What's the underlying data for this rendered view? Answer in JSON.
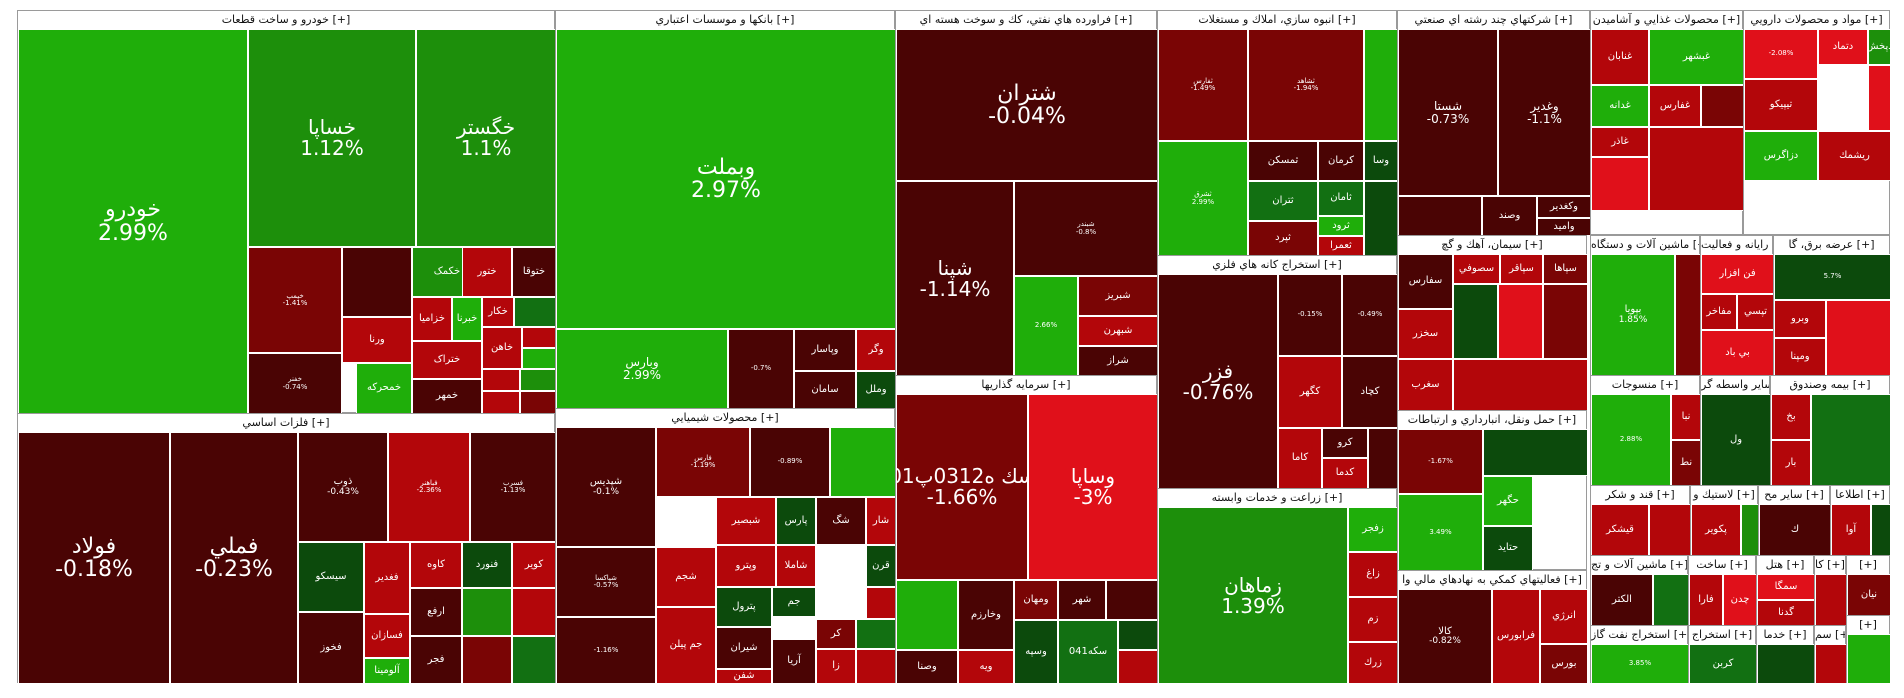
{
  "colors": {
    "strong_up": "#1fae0a",
    "up": "#1d8f0b",
    "mild_up": "#127012",
    "flat_up": "#0c4a0c",
    "flat_down": "#4a0404",
    "down": "#7a0505",
    "mid_down": "#b3060a",
    "strong_down": "#e0101a",
    "white": "#ffffff"
  },
  "sectors": [
    {
      "title": "خودرو و ساخت قطعات [+]",
      "tiles": [
        {
          "name": "خودرو",
          "pct": "2.99%",
          "pct_value": 2.99,
          "size": "xl"
        },
        {
          "name": "خساپا",
          "pct": "1.12%",
          "pct_value": 1.12,
          "size": "lg"
        },
        {
          "name": "خگستر",
          "pct": "1.1%",
          "pct_value": 1.1,
          "size": "lg"
        },
        {
          "name": "خپمپ",
          "pct": "-1.41%",
          "pct_value": -1.41,
          "size": "xs"
        },
        {
          "name": "",
          "pct": "",
          "size": "xs"
        },
        {
          "name": "خکمک",
          "pct": "",
          "size": "sm"
        },
        {
          "name": "ختور",
          "pct": "",
          "size": "sm"
        },
        {
          "name": "ختوقا",
          "pct": "",
          "size": "sm"
        },
        {
          "name": "ورنا",
          "pct": "",
          "size": "sm"
        },
        {
          "name": "خزامیا",
          "pct": "",
          "size": "sm"
        },
        {
          "name": "خبرنا",
          "pct": "",
          "size": "sm"
        },
        {
          "name": "خکار",
          "pct": "",
          "size": "sm"
        },
        {
          "name": "ختراک",
          "pct": "",
          "size": "sm"
        },
        {
          "name": "خمحرکه",
          "pct": "",
          "size": "sm"
        },
        {
          "name": "خمهر",
          "pct": "",
          "size": "sm"
        },
        {
          "name": "خاهن",
          "pct": "",
          "size": "sm"
        },
        {
          "name": "خفنر",
          "pct": "-0.74%",
          "pct_value": -0.74,
          "size": "xs"
        }
      ]
    },
    {
      "title": "فلزات اساسي [+]",
      "tiles": [
        {
          "name": "فولاد",
          "pct": "-0.18%",
          "pct_value": -0.18,
          "size": "xl"
        },
        {
          "name": "فملي",
          "pct": "-0.23%",
          "pct_value": -0.23,
          "size": "xl"
        },
        {
          "name": "ذوب",
          "pct": "-0.43%",
          "pct_value": -0.43,
          "size": "sm"
        },
        {
          "name": "فباهنر",
          "pct": "-2.36%",
          "pct_value": -2.36,
          "size": "xs"
        },
        {
          "name": "فسرب",
          "pct": "-1.13%",
          "pct_value": -1.13,
          "size": "xs"
        },
        {
          "name": "سيسكو",
          "pct": "",
          "size": "sm"
        },
        {
          "name": "فغدير",
          "pct": "",
          "size": "sm"
        },
        {
          "name": "کاوه",
          "pct": "",
          "size": "sm"
        },
        {
          "name": "فنورد",
          "pct": "",
          "size": "sm"
        },
        {
          "name": "كوير",
          "pct": "",
          "size": "sm"
        },
        {
          "name": "ارفع",
          "pct": "",
          "size": "sm"
        },
        {
          "name": "فخوز",
          "pct": "",
          "size": "sm"
        },
        {
          "name": "فسازان",
          "pct": "",
          "size": "sm"
        },
        {
          "name": "آلومينا",
          "pct": "",
          "size": "sm"
        },
        {
          "name": "فجر",
          "pct": "",
          "size": "sm"
        }
      ]
    },
    {
      "title": "بانكها و موسسات اعتباري [+]",
      "tiles": [
        {
          "name": "وبملت",
          "pct": "2.97%",
          "pct_value": 2.97,
          "size": "xl"
        },
        {
          "name": "وبارس",
          "pct": "2.99%",
          "pct_value": 2.99,
          "size": "md"
        },
        {
          "name": "",
          "pct": "-0.7%",
          "pct_value": -0.7,
          "size": "xs"
        },
        {
          "name": "وپاسار",
          "pct": "",
          "size": "sm"
        },
        {
          "name": "وگر",
          "pct": "",
          "size": "sm"
        },
        {
          "name": "وملل",
          "pct": "",
          "size": "sm"
        },
        {
          "name": "سامان",
          "pct": "",
          "size": "sm"
        }
      ]
    },
    {
      "title": "محصولات شيميايي [+]",
      "tiles": [
        {
          "name": "شپديس",
          "pct": "-0.1%",
          "pct_value": -0.1,
          "size": "sm"
        },
        {
          "name": "فارس",
          "pct": "-1.19%",
          "pct_value": -1.19,
          "size": "xs"
        },
        {
          "name": "",
          "pct": "-0.89%",
          "pct_value": -0.89,
          "size": "xs"
        },
        {
          "name": "",
          "pct": "",
          "size": "xs"
        },
        {
          "name": "شبصير",
          "pct": "",
          "size": "sm"
        },
        {
          "name": "پارس",
          "pct": "",
          "size": "sm"
        },
        {
          "name": "شگ",
          "pct": "",
          "size": "sm"
        },
        {
          "name": "شار",
          "pct": "",
          "size": "sm"
        },
        {
          "name": "وپترو",
          "pct": "",
          "size": "sm"
        },
        {
          "name": "شاملا",
          "pct": "",
          "size": "sm"
        },
        {
          "name": "قرن",
          "pct": "",
          "size": "sm"
        },
        {
          "name": "شجم",
          "pct": "",
          "size": "sm"
        },
        {
          "name": "پترول",
          "pct": "",
          "size": "sm"
        },
        {
          "name": "جم",
          "pct": "",
          "size": "sm"
        },
        {
          "name": "شيران",
          "pct": "",
          "size": "sm"
        },
        {
          "name": "جم پيلن",
          "pct": "",
          "size": "sm"
        },
        {
          "name": "شفن",
          "pct": "",
          "size": "sm"
        },
        {
          "name": "آريا",
          "pct": "",
          "size": "sm"
        },
        {
          "name": "كر",
          "pct": "",
          "size": "sm"
        },
        {
          "name": "زا",
          "pct": "",
          "size": "sm"
        },
        {
          "name": "شپاكسا",
          "pct": "-0.57%",
          "pct_value": -0.57,
          "size": "xs"
        },
        {
          "name": "",
          "pct": "-1.16%",
          "pct_value": -1.16,
          "size": "xs"
        }
      ]
    },
    {
      "title": "فراورده هاي نفتي، كك و سوخت هسته اي [+]",
      "tiles": [
        {
          "name": "شتران",
          "pct": "-0.04%",
          "pct_value": -0.04,
          "size": "xl"
        },
        {
          "name": "شپنا",
          "pct": "-1.14%",
          "pct_value": -1.14,
          "size": "lg"
        },
        {
          "name": "شبندر",
          "pct": "-0.8%",
          "pct_value": -0.8,
          "size": "xs"
        },
        {
          "name": "",
          "pct": "2.66%",
          "pct_value": 2.66,
          "size": "xs"
        },
        {
          "name": "شبريز",
          "pct": "",
          "size": "sm"
        },
        {
          "name": "شبهرن",
          "pct": "",
          "size": "sm"
        },
        {
          "name": "شراز",
          "pct": "",
          "size": "sm"
        }
      ]
    },
    {
      "title": "سرمايه گذاريها [+]",
      "tiles": [
        {
          "name": "سك ه0312پ01",
          "pct": "-1.66%",
          "pct_value": -1.66,
          "size": "lg"
        },
        {
          "name": "وساپا",
          "pct": "-3%",
          "pct_value": -3,
          "size": "lg"
        },
        {
          "name": "",
          "pct": "",
          "size": "xs"
        },
        {
          "name": "وخارزم",
          "pct": "",
          "size": "sm"
        },
        {
          "name": "ومهان",
          "pct": "",
          "size": "sm"
        },
        {
          "name": "شهر",
          "pct": "",
          "size": "sm"
        },
        {
          "name": "ويه",
          "pct": "",
          "size": "sm"
        },
        {
          "name": "وصنا",
          "pct": "",
          "size": "sm"
        },
        {
          "name": "وسپه",
          "pct": "",
          "size": "sm"
        },
        {
          "name": "سكه041",
          "pct": "",
          "size": "sm"
        },
        {
          "name": "سكه0",
          "pct": "",
          "size": "sm"
        },
        {
          "name": "صبا",
          "pct": "",
          "size": "sm"
        }
      ]
    },
    {
      "title": "انبوه سازي، املاك و مستغلات [+]",
      "tiles": [
        {
          "name": "ثفارس",
          "pct": "-1.49%",
          "pct_value": -1.49,
          "size": "xs"
        },
        {
          "name": "ثشاهد",
          "pct": "-1.94%",
          "pct_value": -1.94,
          "size": "xs"
        },
        {
          "name": "",
          "pct": "",
          "size": "xs"
        },
        {
          "name": "ثمسكن",
          "pct": "",
          "size": "sm"
        },
        {
          "name": "كرمان",
          "pct": "",
          "size": "sm"
        },
        {
          "name": "وسا",
          "pct": "",
          "size": "sm"
        },
        {
          "name": "ثشرق",
          "pct": "2.99%",
          "pct_value": 2.99,
          "size": "xs"
        },
        {
          "name": "ثامان",
          "pct": "",
          "size": "sm"
        },
        {
          "name": "ثتران",
          "pct": "",
          "size": "sm"
        },
        {
          "name": "ثپرد",
          "pct": "",
          "size": "sm"
        },
        {
          "name": "ثرود",
          "pct": "",
          "size": "sm"
        },
        {
          "name": "ثعمرا",
          "pct": "",
          "size": "sm"
        }
      ]
    },
    {
      "title": "استخراج كانه هاي فلزي [+]",
      "tiles": [
        {
          "name": "فزر",
          "pct": "-0.76%",
          "pct_value": -0.76,
          "size": "lg"
        },
        {
          "name": "",
          "pct": "-0.15%",
          "pct_value": -0.15,
          "size": "xs"
        },
        {
          "name": "",
          "pct": "-0.49%",
          "pct_value": -0.49,
          "size": "xs"
        },
        {
          "name": "كگهر",
          "pct": "",
          "size": "sm"
        },
        {
          "name": "كچاد",
          "pct": "",
          "size": "sm"
        },
        {
          "name": "كاما",
          "pct": "",
          "size": "sm"
        },
        {
          "name": "كرو",
          "pct": "",
          "size": "sm"
        },
        {
          "name": "كدما",
          "pct": "",
          "size": "sm"
        }
      ]
    },
    {
      "title": "زراعت و خدمات وابسته [+]",
      "tiles": [
        {
          "name": "زماهان",
          "pct": "1.39%",
          "pct_value": 1.39,
          "size": "lg"
        },
        {
          "name": "زفجر",
          "pct": "",
          "size": "sm"
        },
        {
          "name": "زاغ",
          "pct": "",
          "size": "sm"
        },
        {
          "name": "زم",
          "pct": "",
          "size": "sm"
        },
        {
          "name": "زرك",
          "pct": "",
          "size": "sm"
        }
      ]
    },
    {
      "title": "شركتهاي چند رشته اي صنعتي [+]",
      "tiles": [
        {
          "name": "شستا",
          "pct": "-0.73%",
          "pct_value": -0.73,
          "size": "md"
        },
        {
          "name": "وغدير",
          "pct": "-1.1%",
          "pct_value": -1.1,
          "size": "md"
        },
        {
          "name": "",
          "pct": "",
          "size": "xs"
        },
        {
          "name": "وصند",
          "pct": "",
          "size": "sm"
        },
        {
          "name": "وكغدير",
          "pct": "",
          "size": "sm"
        },
        {
          "name": "وامید",
          "pct": "",
          "size": "sm"
        }
      ]
    },
    {
      "title": "سيمان، آهك و گچ [+]",
      "tiles": [
        {
          "name": "سفارس",
          "pct": "",
          "size": "sm"
        },
        {
          "name": "سصوفي",
          "pct": "",
          "size": "sm"
        },
        {
          "name": "سپاقر",
          "pct": "",
          "size": "sm"
        },
        {
          "name": "سپاها",
          "pct": "",
          "size": "sm"
        },
        {
          "name": "سخزر",
          "pct": "",
          "size": "sm"
        },
        {
          "name": "سغرب",
          "pct": "",
          "size": "sm"
        }
      ]
    },
    {
      "title": "حمل ونقل، انبارداري و ارتباطات [+]",
      "tiles": [
        {
          "name": "",
          "pct": "-1.67%",
          "pct_value": -1.67,
          "size": "xs"
        },
        {
          "name": "",
          "pct": "",
          "size": "xs"
        },
        {
          "name": "حگهر",
          "pct": "",
          "size": "sm"
        },
        {
          "name": "حتايد",
          "pct": "",
          "size": "sm"
        },
        {
          "name": "",
          "pct": "3.49%",
          "pct_value": 3.49,
          "size": "xs"
        }
      ]
    },
    {
      "title": "فعاليتهاي كمكي به نهادهاي مالي وا [+]",
      "tiles": [
        {
          "name": "كالا",
          "pct": "-0.82%",
          "pct_value": -0.82,
          "size": "sm"
        },
        {
          "name": "فرابورس",
          "pct": "",
          "size": "sm"
        },
        {
          "name": "انرژي",
          "pct": "",
          "size": "sm"
        },
        {
          "name": "بورس",
          "pct": "",
          "size": "sm"
        }
      ]
    },
    {
      "title": "محصولات غذايي و آشاميدن [+]",
      "tiles": [
        {
          "name": "غنابان",
          "pct": "",
          "size": "sm"
        },
        {
          "name": "غبشهر",
          "pct": "",
          "size": "sm"
        },
        {
          "name": "غدانه",
          "pct": "",
          "size": "sm"
        },
        {
          "name": "غفارس",
          "pct": "",
          "size": "sm"
        },
        {
          "name": "غاذر",
          "pct": "",
          "size": "sm"
        }
      ]
    },
    {
      "title": "ماشين آلات و دستگاه [+]",
      "tiles": [
        {
          "name": "بپويا",
          "pct": "1.85%",
          "pct_value": 1.85,
          "size": "sm"
        }
      ]
    },
    {
      "title": "رايانه و فعاليت [+]",
      "tiles": [
        {
          "name": "فن افزار",
          "pct": "",
          "size": "sm"
        },
        {
          "name": "تپسي",
          "pct": "",
          "size": "sm"
        },
        {
          "name": "مفاخر",
          "pct": "",
          "size": "sm"
        },
        {
          "name": "بي باد",
          "pct": "",
          "size": "sm"
        }
      ]
    },
    {
      "title": "مواد و محصولات دارويي [+]",
      "tiles": [
        {
          "name": "",
          "pct": "-2.08%",
          "pct_value": -2.08,
          "size": "xs"
        },
        {
          "name": "تيپيكو",
          "pct": "",
          "size": "sm"
        },
        {
          "name": "دتماد",
          "pct": "",
          "size": "sm"
        },
        {
          "name": "دپخش",
          "pct": "",
          "size": "sm"
        },
        {
          "name": "دزاگرس",
          "pct": "",
          "size": "sm"
        },
        {
          "name": "ريشمك",
          "pct": "",
          "size": "sm"
        }
      ]
    },
    {
      "title": "عرضه برق، گا [+]",
      "tiles": [
        {
          "name": "",
          "pct": "5.7%",
          "pct_value": 5.7,
          "size": "xs"
        },
        {
          "name": "وبرو",
          "pct": "",
          "size": "sm"
        },
        {
          "name": "ومپنا",
          "pct": "",
          "size": "sm"
        }
      ]
    },
    {
      "title": "منسوجات [+]",
      "tiles": [
        {
          "name": "",
          "pct": "2.88%",
          "pct_value": 2.88,
          "size": "xs"
        },
        {
          "name": "نبا",
          "pct": "",
          "size": "sm"
        },
        {
          "name": "نط",
          "pct": "",
          "size": "sm"
        }
      ]
    },
    {
      "title": "ساير واسطه گر [+]",
      "tiles": [
        {
          "name": "ول",
          "pct": "",
          "size": "sm"
        }
      ]
    },
    {
      "title": "بيمه وصندوق [+]",
      "tiles": [
        {
          "name": "بخ",
          "pct": "",
          "size": "sm"
        },
        {
          "name": "بار",
          "pct": "",
          "size": "sm"
        }
      ]
    },
    {
      "title": "قند و شكر [+]",
      "tiles": [
        {
          "name": "قيشكر",
          "pct": "",
          "size": "sm"
        }
      ]
    },
    {
      "title": "لاستيك و [+]",
      "tiles": [
        {
          "name": "پكوير",
          "pct": "",
          "size": "sm"
        }
      ]
    },
    {
      "title": "ساير مح [+]",
      "tiles": [
        {
          "name": "ك",
          "pct": "",
          "size": "sm"
        }
      ]
    },
    {
      "title": "اطلاعا [+]",
      "tiles": [
        {
          "name": "آوا",
          "pct": "",
          "size": "sm"
        }
      ]
    },
    {
      "title": "ماشين آلات و تج [+]",
      "tiles": [
        {
          "name": "الكتر",
          "pct": "",
          "size": "sm"
        }
      ]
    },
    {
      "title": "ساخت [+]",
      "tiles": [
        {
          "name": "فارا",
          "pct": "",
          "size": "sm"
        },
        {
          "name": "چدن",
          "pct": "",
          "size": "sm"
        }
      ]
    },
    {
      "title": "هتل [+]",
      "tiles": [
        {
          "name": "سمگا",
          "pct": "",
          "size": "sm"
        },
        {
          "name": "گدنا",
          "pct": "",
          "size": "sm"
        }
      ]
    },
    {
      "title": "كا [+]",
      "tiles": []
    },
    {
      "title": "[+]",
      "tiles": [
        {
          "name": "نيان",
          "pct": "",
          "size": "sm"
        }
      ]
    },
    {
      "title": "استخراج نفت گاز [+]",
      "tiles": [
        {
          "name": "",
          "pct": "3.85%",
          "pct_value": 3.85,
          "size": "xs"
        }
      ]
    },
    {
      "title": "استخراج [+]",
      "tiles": [
        {
          "name": "كربن",
          "pct": "",
          "size": "sm"
        }
      ]
    },
    {
      "title": "خدما [+]",
      "tiles": []
    },
    {
      "title": "سم [+]",
      "tiles": []
    },
    {
      "title": "[+]",
      "tiles": []
    }
  ]
}
